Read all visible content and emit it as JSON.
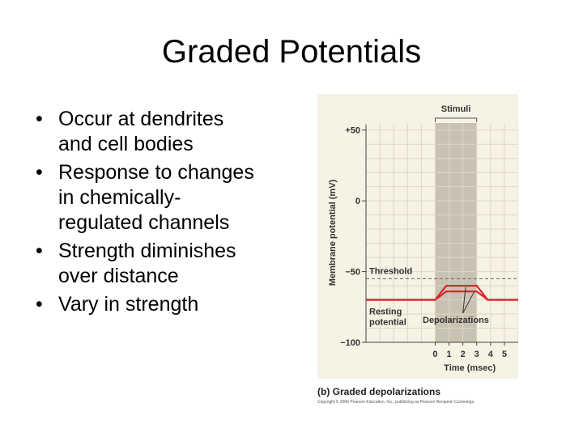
{
  "slide": {
    "title": "Graded Potentials",
    "bullets": [
      {
        "line1": "Occur at dendrites",
        "line2": "and cell bodies"
      },
      {
        "line1": "Response to changes",
        "line2": "in chemically-",
        "line3": "regulated channels"
      },
      {
        "line1": "Strength diminishes",
        "line2": "over distance"
      },
      {
        "line1": "Vary in strength"
      }
    ],
    "bullet_glyph": "•"
  },
  "figure": {
    "caption": "(b) Graded depolarizations",
    "copyright": "Copyright © 2006 Pearson Education, Inc., publishing as Pearson Benjamin Cummings."
  },
  "chart_data": {
    "type": "line",
    "xlabel": "Time (msec)",
    "ylabel": "Membrane potential (mV)",
    "xlim": [
      -5,
      6
    ],
    "ylim": [
      -100,
      55
    ],
    "x_ticks": [
      0,
      1,
      2,
      3,
      4,
      5
    ],
    "y_ticks": [
      {
        "value": 50,
        "label": "+50"
      },
      {
        "value": 0,
        "label": "0"
      },
      {
        "value": -50,
        "label": "−50"
      },
      {
        "value": -100,
        "label": "−100"
      }
    ],
    "grid": true,
    "stimulus": {
      "label": "Stimuli",
      "start": 0,
      "end": 3
    },
    "threshold": {
      "label": "Threshold",
      "value": -55
    },
    "annotations": {
      "resting": [
        "Resting",
        "potential"
      ],
      "depolarizations": "Depolarizations"
    },
    "colors": {
      "curve": "#d9262c",
      "shade": "#c8c2b2",
      "background": "#f6f2e4",
      "grid": "#ddd7c6"
    },
    "series": [
      {
        "x": [
          -5,
          0,
          0.8,
          2.2,
          3,
          3.8,
          6
        ],
        "y": [
          -70,
          -70,
          -64,
          -64,
          -64,
          -70,
          -70
        ]
      },
      {
        "x": [
          -5,
          0,
          0.8,
          2.2,
          3,
          3.8,
          6
        ],
        "y": [
          -70,
          -70,
          -60,
          -60,
          -60,
          -70,
          -70
        ]
      }
    ]
  }
}
